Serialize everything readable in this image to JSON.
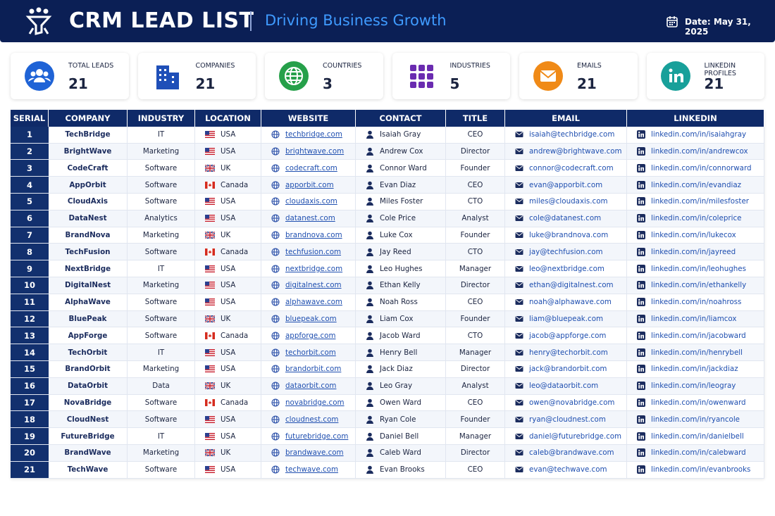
{
  "header": {
    "title": "CRM LEAD LIST",
    "subtitle": "Driving Business Growth",
    "date": "Date: May 31, 2025"
  },
  "stats": [
    {
      "label": "TOTAL LEADS",
      "value": 21
    },
    {
      "label": "COMPANIES",
      "value": 21
    },
    {
      "label": "COUNTRIES",
      "value": 3
    },
    {
      "label": "INDUSTRIES",
      "value": 5
    },
    {
      "label": "EMAILS",
      "value": 21
    },
    {
      "label": "LINKEDIN PROFILES",
      "value": 21
    }
  ],
  "table": {
    "columns": [
      "SERIAL",
      "COMPANY",
      "INDUSTRY",
      "LOCATION",
      "WEBSITE",
      "CONTACT",
      "TITLE",
      "EMAIL",
      "LINKEDIN"
    ],
    "rows": [
      [
        1,
        "TechBridge",
        "IT",
        "USA",
        "techbridge.com",
        "Isaiah Gray",
        "CEO",
        "isaiah@techbridge.com",
        "linkedin.com/in/isaiahgray"
      ],
      [
        2,
        "BrightWave",
        "Marketing",
        "USA",
        "brightwave.com",
        "Andrew Cox",
        "Director",
        "andrew@brightwave.com",
        "linkedin.com/in/andrewcox"
      ],
      [
        3,
        "CodeCraft",
        "Software",
        "UK",
        "codecraft.com",
        "Connor Ward",
        "Founder",
        "connor@codecraft.com",
        "linkedin.com/in/connorward"
      ],
      [
        4,
        "AppOrbit",
        "Software",
        "Canada",
        "apporbit.com",
        "Evan Diaz",
        "CEO",
        "evan@apporbit.com",
        "linkedin.com/in/evandiaz"
      ],
      [
        5,
        "CloudAxis",
        "Software",
        "USA",
        "cloudaxis.com",
        "Miles Foster",
        "CTO",
        "miles@cloudaxis.com",
        "linkedin.com/in/milesfoster"
      ],
      [
        6,
        "DataNest",
        "Analytics",
        "USA",
        "datanest.com",
        "Cole Price",
        "Analyst",
        "cole@datanest.com",
        "linkedin.com/in/coleprice"
      ],
      [
        7,
        "BrandNova",
        "Marketing",
        "UK",
        "brandnova.com",
        "Luke Cox",
        "Founder",
        "luke@brandnova.com",
        "linkedin.com/in/lukecox"
      ],
      [
        8,
        "TechFusion",
        "Software",
        "Canada",
        "techfusion.com",
        "Jay Reed",
        "CTO",
        "jay@techfusion.com",
        "linkedin.com/in/jayreed"
      ],
      [
        9,
        "NextBridge",
        "IT",
        "USA",
        "nextbridge.com",
        "Leo Hughes",
        "Manager",
        "leo@nextbridge.com",
        "linkedin.com/in/leohughes"
      ],
      [
        10,
        "DigitalNest",
        "Marketing",
        "USA",
        "digitalnest.com",
        "Ethan Kelly",
        "Director",
        "ethan@digitalnest.com",
        "linkedin.com/in/ethankelly"
      ],
      [
        11,
        "AlphaWave",
        "Software",
        "USA",
        "alphawave.com",
        "Noah Ross",
        "CEO",
        "noah@alphawave.com",
        "linkedin.com/in/noahross"
      ],
      [
        12,
        "BluePeak",
        "Software",
        "UK",
        "bluepeak.com",
        "Liam Cox",
        "Founder",
        "liam@bluepeak.com",
        "linkedin.com/in/liamcox"
      ],
      [
        13,
        "AppForge",
        "Software",
        "Canada",
        "appforge.com",
        "Jacob Ward",
        "CTO",
        "jacob@appforge.com",
        "linkedin.com/in/jacobward"
      ],
      [
        14,
        "TechOrbit",
        "IT",
        "USA",
        "techorbit.com",
        "Henry Bell",
        "Manager",
        "henry@techorbit.com",
        "linkedin.com/in/henrybell"
      ],
      [
        15,
        "BrandOrbit",
        "Marketing",
        "USA",
        "brandorbit.com",
        "Jack Diaz",
        "Director",
        "jack@brandorbit.com",
        "linkedin.com/in/jackdiaz"
      ],
      [
        16,
        "DataOrbit",
        "Data",
        "UK",
        "dataorbit.com",
        "Leo Gray",
        "Analyst",
        "leo@dataorbit.com",
        "linkedin.com/in/leogray"
      ],
      [
        17,
        "NovaBridge",
        "Software",
        "Canada",
        "novabridge.com",
        "Owen Ward",
        "CEO",
        "owen@novabridge.com",
        "linkedin.com/in/owenward"
      ],
      [
        18,
        "CloudNest",
        "Software",
        "USA",
        "cloudnest.com",
        "Ryan Cole",
        "Founder",
        "ryan@cloudnest.com",
        "linkedin.com/in/ryancole"
      ],
      [
        19,
        "FutureBridge",
        "IT",
        "USA",
        "futurebridge.com",
        "Daniel Bell",
        "Manager",
        "daniel@futurebridge.com",
        "linkedin.com/in/danielbell"
      ],
      [
        20,
        "BrandWave",
        "Marketing",
        "UK",
        "brandwave.com",
        "Caleb Ward",
        "Director",
        "caleb@brandwave.com",
        "linkedin.com/in/calebward"
      ],
      [
        21,
        "TechWave",
        "Software",
        "USA",
        "techwave.com",
        "Evan Brooks",
        "CEO",
        "evan@techwave.com",
        "linkedin.com/in/evanbrooks"
      ]
    ]
  }
}
